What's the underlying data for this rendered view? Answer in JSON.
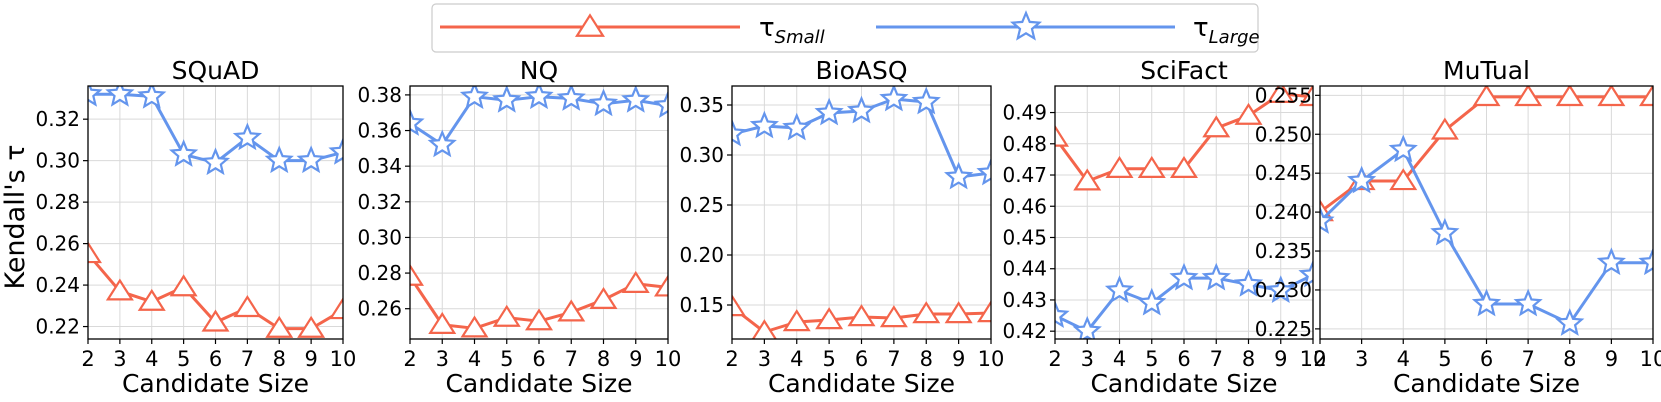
{
  "legend": {
    "placement": "top-center",
    "entries": [
      {
        "label_main": "τ",
        "label_sub": "Small",
        "series": "small"
      },
      {
        "label_main": "τ",
        "label_sub": "Large",
        "series": "large"
      }
    ]
  },
  "ylabel": "Kendall's τ",
  "colors": {
    "small": "#F4654B",
    "large": "#6495ED",
    "grid": "#d9d9d9",
    "axis": "#000000"
  },
  "chart_data": [
    {
      "type": "line",
      "title": "SQuAD",
      "xlabel": "Candidate Size",
      "ylabel": "Kendall's τ",
      "x": [
        2,
        3,
        4,
        5,
        6,
        7,
        8,
        9,
        10
      ],
      "xlim": [
        2,
        10
      ],
      "ylim": [
        0.214,
        0.336
      ],
      "yticks": [
        0.22,
        0.24,
        0.26,
        0.28,
        0.3,
        0.32
      ],
      "ytick_labels": [
        "0.22",
        "0.24",
        "0.26",
        "0.28",
        "0.30",
        "0.32"
      ],
      "series": [
        {
          "name": "τ_Small",
          "key": "small",
          "marker": "triangle",
          "values": [
            0.255,
            0.237,
            0.232,
            0.239,
            0.222,
            0.229,
            0.219,
            0.219,
            0.228
          ]
        },
        {
          "name": "τ_Large",
          "key": "large",
          "marker": "star",
          "values": [
            0.332,
            0.332,
            0.331,
            0.303,
            0.299,
            0.311,
            0.3,
            0.3,
            0.304
          ]
        }
      ]
    },
    {
      "type": "line",
      "title": "NQ",
      "xlabel": "Candidate Size",
      "ylabel": "",
      "x": [
        2,
        3,
        4,
        5,
        6,
        7,
        8,
        9,
        10
      ],
      "xlim": [
        2,
        10
      ],
      "ylim": [
        0.243,
        0.385
      ],
      "yticks": [
        0.26,
        0.28,
        0.3,
        0.32,
        0.34,
        0.36,
        0.38
      ],
      "ytick_labels": [
        "0.26",
        "0.28",
        "0.30",
        "0.32",
        "0.34",
        "0.36",
        "0.38"
      ],
      "series": [
        {
          "name": "τ_Small",
          "key": "small",
          "marker": "triangle",
          "values": [
            0.278,
            0.251,
            0.249,
            0.255,
            0.253,
            0.258,
            0.265,
            0.274,
            0.272
          ]
        },
        {
          "name": "τ_Large",
          "key": "large",
          "marker": "star",
          "values": [
            0.364,
            0.352,
            0.379,
            0.377,
            0.379,
            0.378,
            0.375,
            0.377,
            0.374
          ]
        }
      ]
    },
    {
      "type": "line",
      "title": "BioASQ",
      "xlabel": "Candidate Size",
      "ylabel": "",
      "x": [
        2,
        3,
        4,
        5,
        6,
        7,
        8,
        9,
        10
      ],
      "xlim": [
        2,
        10
      ],
      "ylim": [
        0.116,
        0.369
      ],
      "yticks": [
        0.15,
        0.2,
        0.25,
        0.3,
        0.35
      ],
      "ytick_labels": [
        "0.15",
        "0.20",
        "0.25",
        "0.30",
        "0.35"
      ],
      "series": [
        {
          "name": "τ_Small",
          "key": "small",
          "marker": "triangle",
          "values": [
            0.148,
            0.123,
            0.133,
            0.135,
            0.138,
            0.137,
            0.141,
            0.141,
            0.142
          ]
        },
        {
          "name": "τ_Large",
          "key": "large",
          "marker": "star",
          "values": [
            0.321,
            0.329,
            0.327,
            0.342,
            0.344,
            0.356,
            0.353,
            0.278,
            0.282
          ]
        }
      ]
    },
    {
      "type": "line",
      "title": "SciFact",
      "xlabel": "Candidate Size",
      "ylabel": "",
      "x": [
        2,
        3,
        4,
        5,
        6,
        7,
        8,
        9,
        10
      ],
      "xlim": [
        2,
        10
      ],
      "ylim": [
        0.4175,
        0.4985
      ],
      "yticks": [
        0.42,
        0.43,
        0.44,
        0.45,
        0.46,
        0.47,
        0.48,
        0.49
      ],
      "ytick_labels": [
        "0.42",
        "0.43",
        "0.44",
        "0.45",
        "0.46",
        "0.47",
        "0.48",
        "0.49"
      ],
      "series": [
        {
          "name": "τ_Small",
          "key": "small",
          "marker": "triangle",
          "values": [
            0.482,
            0.468,
            0.472,
            0.472,
            0.472,
            0.485,
            0.489,
            0.496,
            0.495
          ]
        },
        {
          "name": "τ_Large",
          "key": "large",
          "marker": "star",
          "values": [
            0.425,
            0.42,
            0.433,
            0.429,
            0.437,
            0.437,
            0.435,
            0.433,
            0.438
          ]
        }
      ]
    },
    {
      "type": "line",
      "title": "MuTual",
      "xlabel": "Candidate Size",
      "ylabel": "",
      "x": [
        2,
        3,
        4,
        5,
        6,
        7,
        8,
        9,
        10
      ],
      "xlim": [
        2,
        10
      ],
      "ylim": [
        0.2237,
        0.2562
      ],
      "yticks": [
        0.225,
        0.23,
        0.235,
        0.24,
        0.245,
        0.25,
        0.255
      ],
      "ytick_labels": [
        "0.225",
        "0.230",
        "0.235",
        "0.240",
        "0.245",
        "0.250",
        "0.255"
      ],
      "series": [
        {
          "name": "τ_Small",
          "key": "small",
          "marker": "triangle",
          "values": [
            0.24,
            0.244,
            0.244,
            0.2505,
            0.2548,
            0.2548,
            0.2548,
            0.2548,
            0.2548
          ]
        },
        {
          "name": "τ_Large",
          "key": "large",
          "marker": "star",
          "values": [
            0.2388,
            0.244,
            0.248,
            0.2373,
            0.2282,
            0.2282,
            0.2257,
            0.2335,
            0.2335
          ]
        }
      ]
    }
  ]
}
